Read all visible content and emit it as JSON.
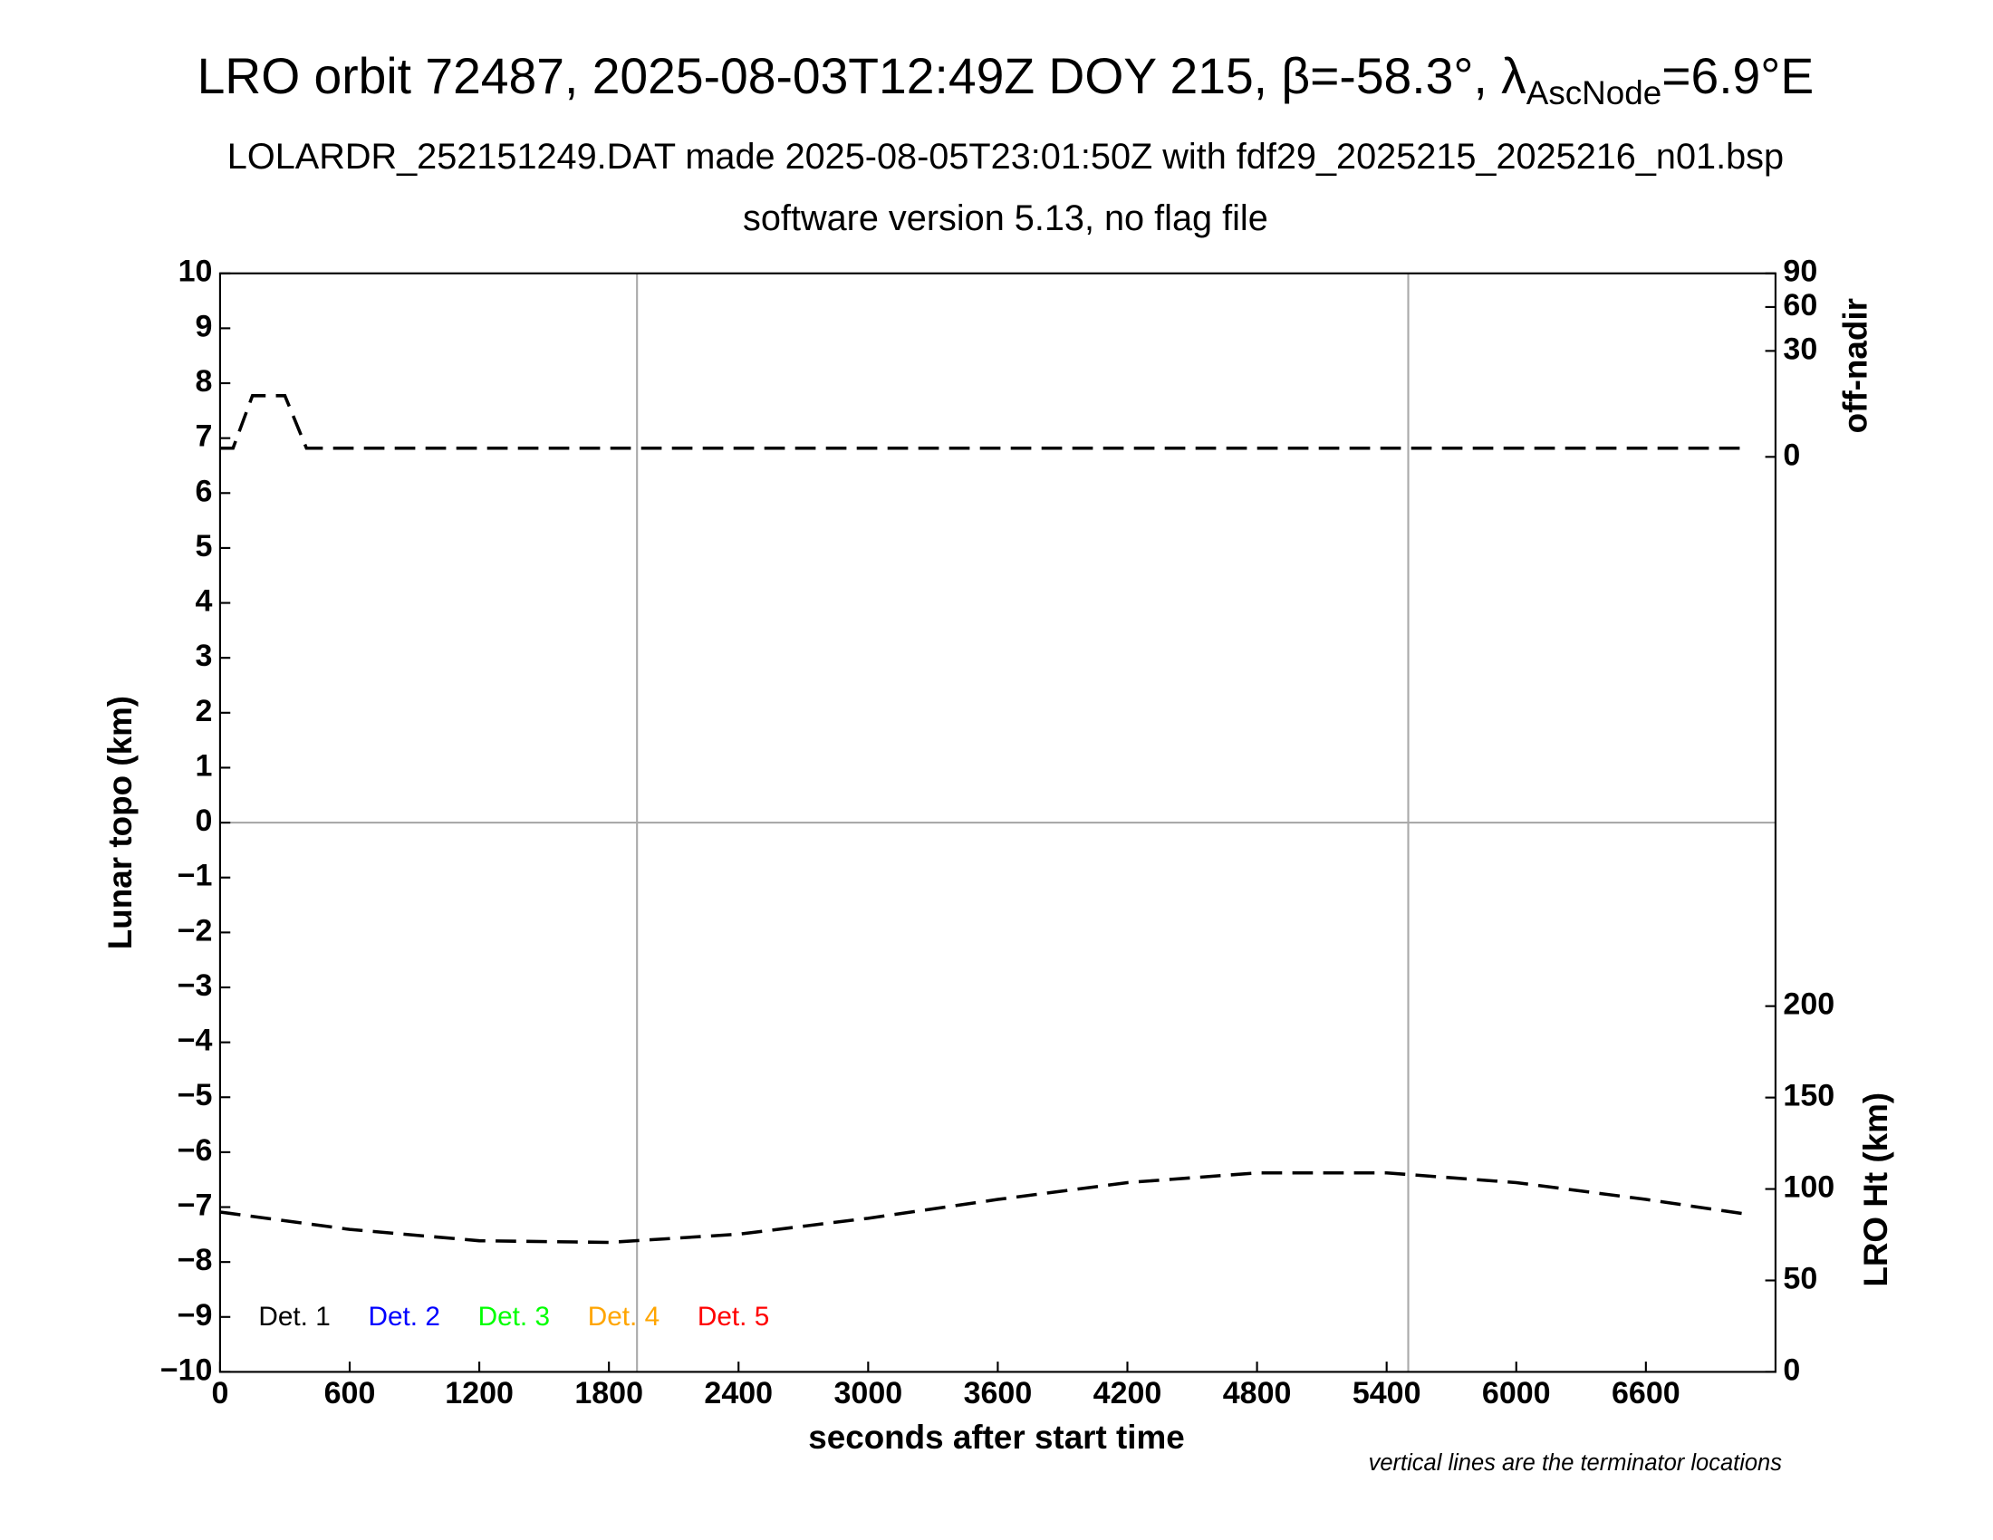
{
  "chart_data": {
    "type": "line",
    "title": {
      "main": "LRO orbit 72487, 2025-08-03T12:49Z DOY 215, β=-58.3°, λ",
      "sub": "AscNode",
      "end": "=6.9°E"
    },
    "subtitle": [
      "LOLARDR_252151249.DAT made 2025-08-05T23:01:50Z with fdf29_2025215_2025216_n01.bsp",
      "software version 5.13, no flag file"
    ],
    "xlabel": "seconds after start time",
    "ylabel": "Lunar topo (km)",
    "y2label": "off-nadir",
    "y3label": "LRO Ht (km)",
    "note": "vertical lines are the terminator locations",
    "xlim": [
      0,
      7200
    ],
    "xticks": [
      0,
      600,
      1200,
      1800,
      2400,
      3000,
      3600,
      4200,
      4800,
      5400,
      6000,
      6600
    ],
    "ylim": [
      -10,
      10
    ],
    "yticks": [
      {
        "value": -10,
        "label": "−10"
      },
      {
        "value": -9,
        "label": "−9"
      },
      {
        "value": -8,
        "label": "−8"
      },
      {
        "value": -7,
        "label": "−7"
      },
      {
        "value": -6,
        "label": "−6"
      },
      {
        "value": -5,
        "label": "−5"
      },
      {
        "value": -4,
        "label": "−4"
      },
      {
        "value": -3,
        "label": "−3"
      },
      {
        "value": -2,
        "label": "−2"
      },
      {
        "value": -1,
        "label": "−1"
      },
      0,
      1,
      2,
      3,
      4,
      5,
      6,
      7,
      8,
      9,
      10
    ],
    "y2lim": [
      0,
      90
    ],
    "y2scale": "sqrt",
    "y2ticks": [
      0,
      30,
      60,
      90
    ],
    "y3lim": [
      0,
      200
    ],
    "y3ticks": [
      0,
      50,
      100,
      150,
      200
    ],
    "terminators": [
      1930,
      5500
    ],
    "legend": [
      {
        "name": "Det. 1",
        "color": "#000000"
      },
      {
        "name": "Det. 2",
        "color": "#0000ff"
      },
      {
        "name": "Det. 3",
        "color": "#00ff00"
      },
      {
        "name": "Det. 4",
        "color": "#ffa500"
      },
      {
        "name": "Det. 5",
        "color": "#ff0000"
      }
    ],
    "series": [
      {
        "name": "off-nadir",
        "axis": "y2",
        "color": "#000000",
        "x": [
          0,
          60,
          150,
          300,
          400,
          1800,
          3600,
          5400,
          7080
        ],
        "values": [
          0.2,
          0.2,
          10,
          10,
          0.2,
          0.2,
          0.2,
          0.2,
          0.2
        ]
      },
      {
        "name": "LRO Ht",
        "axis": "y3",
        "color": "#000000",
        "x": [
          0,
          600,
          1200,
          1800,
          2400,
          3000,
          3600,
          4200,
          4800,
          5400,
          6000,
          6600,
          7080
        ],
        "values": [
          87.4,
          77.9,
          71.7,
          70.8,
          75.3,
          84.0,
          94.3,
          103.5,
          108.8,
          108.8,
          103.5,
          94.3,
          86.0
        ]
      }
    ]
  }
}
